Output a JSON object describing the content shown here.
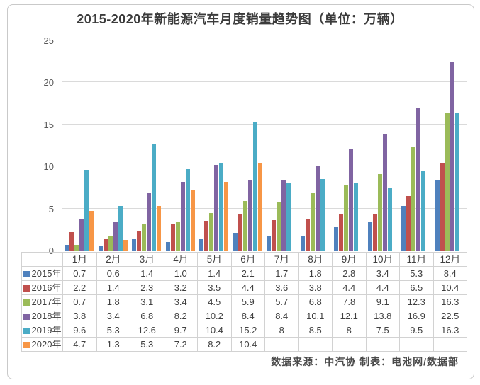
{
  "title": "2015-2020年新能源汽车月度销量趋势图（单位：万辆）",
  "footer": "数据来源：中汽协  制表：电池网/数据部",
  "chart_data": {
    "type": "bar",
    "title": "2015-2020年新能源汽车月度销量趋势图（单位：万辆）",
    "xlabel": "",
    "ylabel": "",
    "ylim": [
      0,
      25
    ],
    "yticks": [
      0,
      5,
      10,
      15,
      20,
      25
    ],
    "grid": true,
    "legend_position": "table-left",
    "categories": [
      "1月",
      "2月",
      "3月",
      "4月",
      "5月",
      "6月",
      "7月",
      "8月",
      "9月",
      "10月",
      "11月",
      "12月"
    ],
    "series": [
      {
        "name": "2015年",
        "color": "#4F81BD",
        "values": [
          0.7,
          0.6,
          1.4,
          1.0,
          1.4,
          2.1,
          1.7,
          1.8,
          2.8,
          3.4,
          5.3,
          8.4
        ],
        "display": [
          "0.7",
          "0.6",
          "1.4",
          "1.0",
          "1.4",
          "2.1",
          "1.7",
          "1.8",
          "2.8",
          "3.4",
          "5.3",
          "8.4"
        ]
      },
      {
        "name": "2016年",
        "color": "#C0504D",
        "values": [
          2.2,
          1.4,
          2.3,
          3.2,
          3.5,
          4.4,
          3.6,
          3.8,
          4.4,
          4.4,
          6.5,
          10.4
        ],
        "display": [
          "2.2",
          "1.4",
          "2.3",
          "3.2",
          "3.5",
          "4.4",
          "3.6",
          "3.8",
          "4.4",
          "4.4",
          "6.5",
          "10.4"
        ]
      },
      {
        "name": "2017年",
        "color": "#9BBB59",
        "values": [
          0.7,
          1.8,
          3.1,
          3.4,
          4.5,
          5.9,
          5.7,
          6.8,
          7.8,
          9.1,
          12.3,
          16.3
        ],
        "display": [
          "0.7",
          "1.8",
          "3.1",
          "3.4",
          "4.5",
          "5.9",
          "5.7",
          "6.8",
          "7.8",
          "9.1",
          "12.3",
          "16.3"
        ]
      },
      {
        "name": "2018年",
        "color": "#8064A2",
        "values": [
          3.8,
          3.4,
          6.8,
          8.2,
          10.2,
          8.4,
          8.4,
          10.1,
          12.1,
          13.8,
          16.9,
          22.5
        ],
        "display": [
          "3.8",
          "3.4",
          "6.8",
          "8.2",
          "10.2",
          "8.4",
          "8.4",
          "10.1",
          "12.1",
          "13.8",
          "16.9",
          "22.5"
        ]
      },
      {
        "name": "2019年",
        "color": "#4BACC6",
        "values": [
          9.6,
          5.3,
          12.6,
          9.7,
          10.4,
          15.2,
          8,
          8.5,
          8,
          7.5,
          9.5,
          16.3
        ],
        "display": [
          "9.6",
          "5.3",
          "12.6",
          "9.7",
          "10.4",
          "15.2",
          "8",
          "8.5",
          "8",
          "7.5",
          "9.5",
          "16.3"
        ]
      },
      {
        "name": "2020年",
        "color": "#F79646",
        "values": [
          4.7,
          1.3,
          5.3,
          7.2,
          8.2,
          10.4,
          null,
          null,
          null,
          null,
          null,
          null
        ],
        "display": [
          "4.7",
          "1.3",
          "5.3",
          "7.2",
          "8.2",
          "10.4",
          "",
          "",
          "",
          "",
          "",
          ""
        ]
      }
    ]
  }
}
